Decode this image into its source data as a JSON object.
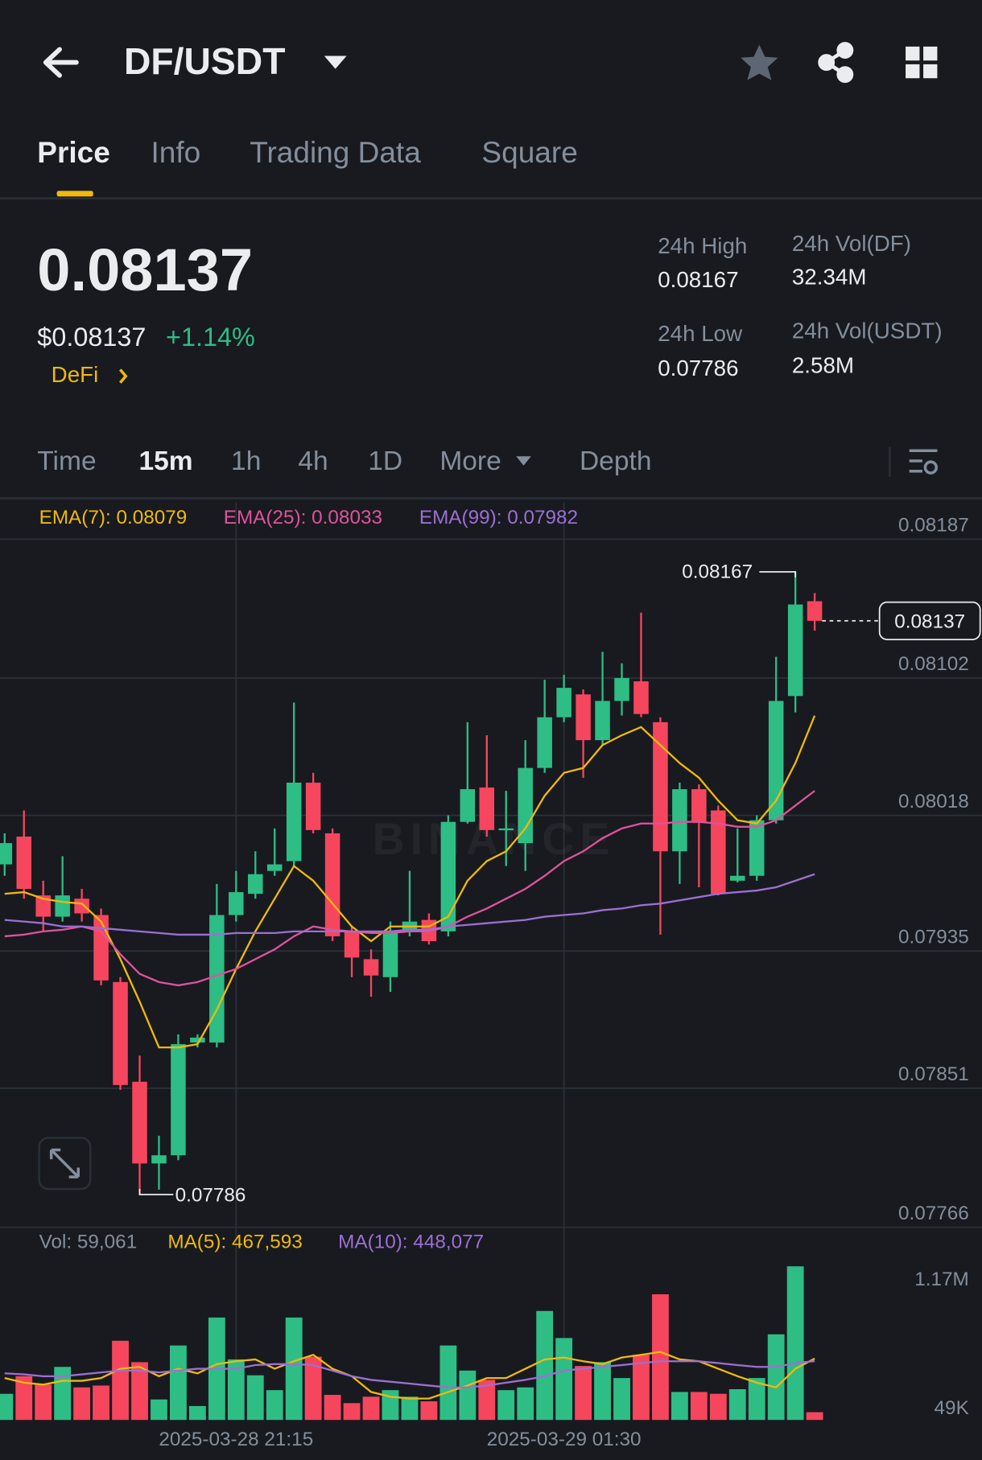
{
  "header": {
    "pair": "DF/USDT"
  },
  "tabs": [
    "Price",
    "Info",
    "Trading Data",
    "Square"
  ],
  "ticker": {
    "price": "0.08137",
    "usd": "$0.08137",
    "change": "+1.14%",
    "tag": "DeFi",
    "stats": [
      {
        "label": "24h High",
        "value": "0.08167"
      },
      {
        "label": "24h Vol(DF)",
        "value": "32.34M"
      },
      {
        "label": "24h Low",
        "value": "0.07786"
      },
      {
        "label": "24h Vol(USDT)",
        "value": "2.58M"
      }
    ]
  },
  "intervals": [
    "Time",
    "15m",
    "1h",
    "4h",
    "1D",
    "More",
    "Depth"
  ],
  "chart_data": [
    {
      "type": "candlestick",
      "watermark": "BINANCE",
      "up_color": "#2ebd85",
      "down_color": "#f6465d",
      "open": [
        0.07988,
        0.08005,
        0.07969,
        0.07956,
        0.07967,
        0.07957,
        0.07916,
        0.07855,
        0.07805,
        0.0781,
        0.07879,
        0.07879,
        0.07957,
        0.0797,
        0.07984,
        0.0799,
        0.08038,
        0.08007,
        0.07947,
        0.0793,
        0.07919,
        0.07947,
        0.07954,
        0.07947,
        0.08014,
        0.08035,
        0.08009,
        0.08001,
        0.08047,
        0.08078,
        0.08092,
        0.08064,
        0.08088,
        0.081,
        0.08075,
        0.07996,
        0.08034,
        0.08021,
        0.07978,
        0.07981,
        0.08015,
        0.08091,
        0.08149
      ],
      "high": [
        0.08007,
        0.08021,
        0.07978,
        0.07993,
        0.07973,
        0.07961,
        0.07919,
        0.07871,
        0.07822,
        0.07884,
        0.07884,
        0.07976,
        0.07984,
        0.07996,
        0.0801,
        0.08087,
        0.08044,
        0.0801,
        0.0795,
        0.07936,
        0.07953,
        0.07984,
        0.07958,
        0.08018,
        0.08075,
        0.08067,
        0.08033,
        0.08064,
        0.08101,
        0.08104,
        0.08095,
        0.08118,
        0.08111,
        0.08142,
        0.08078,
        0.08038,
        0.08037,
        0.08024,
        0.0801,
        0.08018,
        0.08115,
        0.08167,
        0.08154
      ],
      "low": [
        0.07981,
        0.07967,
        0.07947,
        0.07953,
        0.07953,
        0.07914,
        0.0785,
        0.07786,
        0.07789,
        0.07807,
        0.07876,
        0.07876,
        0.07953,
        0.07967,
        0.07981,
        0.07987,
        0.08007,
        0.07941,
        0.07919,
        0.07907,
        0.0791,
        0.07944,
        0.07939,
        0.07944,
        0.08013,
        0.08005,
        0.07987,
        0.07984,
        0.08044,
        0.08075,
        0.08041,
        0.08061,
        0.08079,
        0.08078,
        0.07945,
        0.07976,
        0.07974,
        0.07969,
        0.07977,
        0.07978,
        0.08013,
        0.08081,
        0.08131
      ],
      "close": [
        0.08001,
        0.07973,
        0.07956,
        0.07969,
        0.07958,
        0.07917,
        0.07853,
        0.07805,
        0.0781,
        0.07878,
        0.07882,
        0.07957,
        0.07971,
        0.07982,
        0.07988,
        0.08038,
        0.08009,
        0.07944,
        0.07931,
        0.0792,
        0.07947,
        0.07953,
        0.07941,
        0.08014,
        0.08034,
        0.08009,
        0.0801,
        0.08047,
        0.08078,
        0.08096,
        0.08064,
        0.08088,
        0.08102,
        0.0808,
        0.07996,
        0.08034,
        0.08014,
        0.0797,
        0.07981,
        0.08015,
        0.08088,
        0.08147,
        0.08137
      ],
      "lines": [
        {
          "label": "EMA(7): 0.08079",
          "color": "#f0b90b",
          "values": [
            0.0797,
            0.07971,
            0.07967,
            0.07965,
            0.07964,
            0.07953,
            0.0793,
            0.07904,
            0.07876,
            0.07876,
            0.07878,
            0.07899,
            0.07924,
            0.07947,
            0.07967,
            0.07987,
            0.07978,
            0.07964,
            0.0795,
            0.07941,
            0.0795,
            0.0795,
            0.0795,
            0.07956,
            0.07978,
            0.0799,
            0.07996,
            0.0801,
            0.0803,
            0.08044,
            0.08047,
            0.08061,
            0.08067,
            0.08072,
            0.08061,
            0.0805,
            0.08041,
            0.08027,
            0.08015,
            0.08013,
            0.08027,
            0.0805,
            0.08079
          ]
        },
        {
          "label": "EMA(25): 0.08033",
          "color": "#e0529c",
          "values": [
            0.07944,
            0.07945,
            0.07947,
            0.07948,
            0.0795,
            0.07947,
            0.07933,
            0.07921,
            0.07916,
            0.07914,
            0.07916,
            0.0792,
            0.07924,
            0.0793,
            0.07936,
            0.07944,
            0.0795,
            0.07948,
            0.07947,
            0.07946,
            0.07946,
            0.07947,
            0.07947,
            0.0795,
            0.07956,
            0.07961,
            0.07967,
            0.07973,
            0.07981,
            0.0799,
            0.07996,
            0.08004,
            0.0801,
            0.08013,
            0.08013,
            0.08014,
            0.08014,
            0.08013,
            0.08011,
            0.08011,
            0.08015,
            0.08024,
            0.08033
          ]
        },
        {
          "label": "EMA(99): 0.07982",
          "color": "#9c6fd3",
          "values": [
            0.07954,
            0.07953,
            0.07952,
            0.0795,
            0.0795,
            0.07949,
            0.07948,
            0.07947,
            0.07946,
            0.07945,
            0.07945,
            0.07945,
            0.07946,
            0.07946,
            0.07946,
            0.07947,
            0.07947,
            0.07947,
            0.07947,
            0.07947,
            0.07947,
            0.07948,
            0.07948,
            0.0795,
            0.07951,
            0.07952,
            0.07953,
            0.07954,
            0.07956,
            0.07957,
            0.07958,
            0.0796,
            0.07961,
            0.07963,
            0.07964,
            0.07966,
            0.07968,
            0.0797,
            0.07971,
            0.07972,
            0.07974,
            0.07978,
            0.07982
          ]
        }
      ],
      "annotations": {
        "high": 0.08167,
        "high_label": "0.08167",
        "low": 0.07786,
        "low_label": "0.07786",
        "last": 0.08137,
        "last_label": "0.08137"
      },
      "ylim": [
        0.07766,
        0.08187
      ],
      "yticks": [
        0.07766,
        0.07851,
        0.07935,
        0.08018,
        0.08102,
        0.08187
      ],
      "xticks": [
        {
          "value": 12,
          "label": "2025-03-28 21:15"
        },
        {
          "value": 29,
          "label": "2025-03-29 01:30"
        }
      ]
    },
    {
      "type": "bar",
      "label": "Vol: 59,061",
      "values": [
        199000,
        333000,
        269000,
        404000,
        248000,
        262000,
        603000,
        440000,
        156000,
        567000,
        106000,
        780000,
        461000,
        340000,
        227000,
        780000,
        482000,
        191000,
        128000,
        177000,
        227000,
        177000,
        142000,
        567000,
        376000,
        305000,
        227000,
        248000,
        830000,
        624000,
        411000,
        440000,
        319000,
        496000,
        957000,
        213000,
        213000,
        199000,
        234000,
        319000,
        652000,
        1170000,
        59061
      ],
      "lines": [
        {
          "label": "MA(5): 467,593",
          "color": "#f0b90b",
          "values": [
            319000,
            284000,
            269000,
            298000,
            298000,
            319000,
            390000,
            404000,
            333000,
            390000,
            355000,
            425000,
            447000,
            461000,
            390000,
            447000,
            496000,
            390000,
            333000,
            213000,
            177000,
            163000,
            163000,
            213000,
            262000,
            319000,
            319000,
            390000,
            461000,
            475000,
            447000,
            425000,
            475000,
            496000,
            518000,
            461000,
            447000,
            390000,
            333000,
            284000,
            248000,
            390000,
            467593
          ]
        },
        {
          "label": "MA(10): 448,077",
          "color": "#9c6fd3",
          "values": [
            355000,
            347000,
            333000,
            333000,
            347000,
            362000,
            376000,
            376000,
            362000,
            376000,
            390000,
            390000,
            390000,
            418000,
            425000,
            425000,
            418000,
            376000,
            333000,
            305000,
            291000,
            277000,
            262000,
            248000,
            248000,
            262000,
            284000,
            305000,
            333000,
            376000,
            390000,
            404000,
            418000,
            433000,
            447000,
            447000,
            447000,
            433000,
            418000,
            404000,
            404000,
            433000,
            448077
          ]
        }
      ],
      "ylim": [
        0,
        1170000
      ],
      "yticks": [
        {
          "value": 1170000,
          "label": "1.17M"
        },
        {
          "value": 49000,
          "label": "49K"
        }
      ]
    }
  ]
}
